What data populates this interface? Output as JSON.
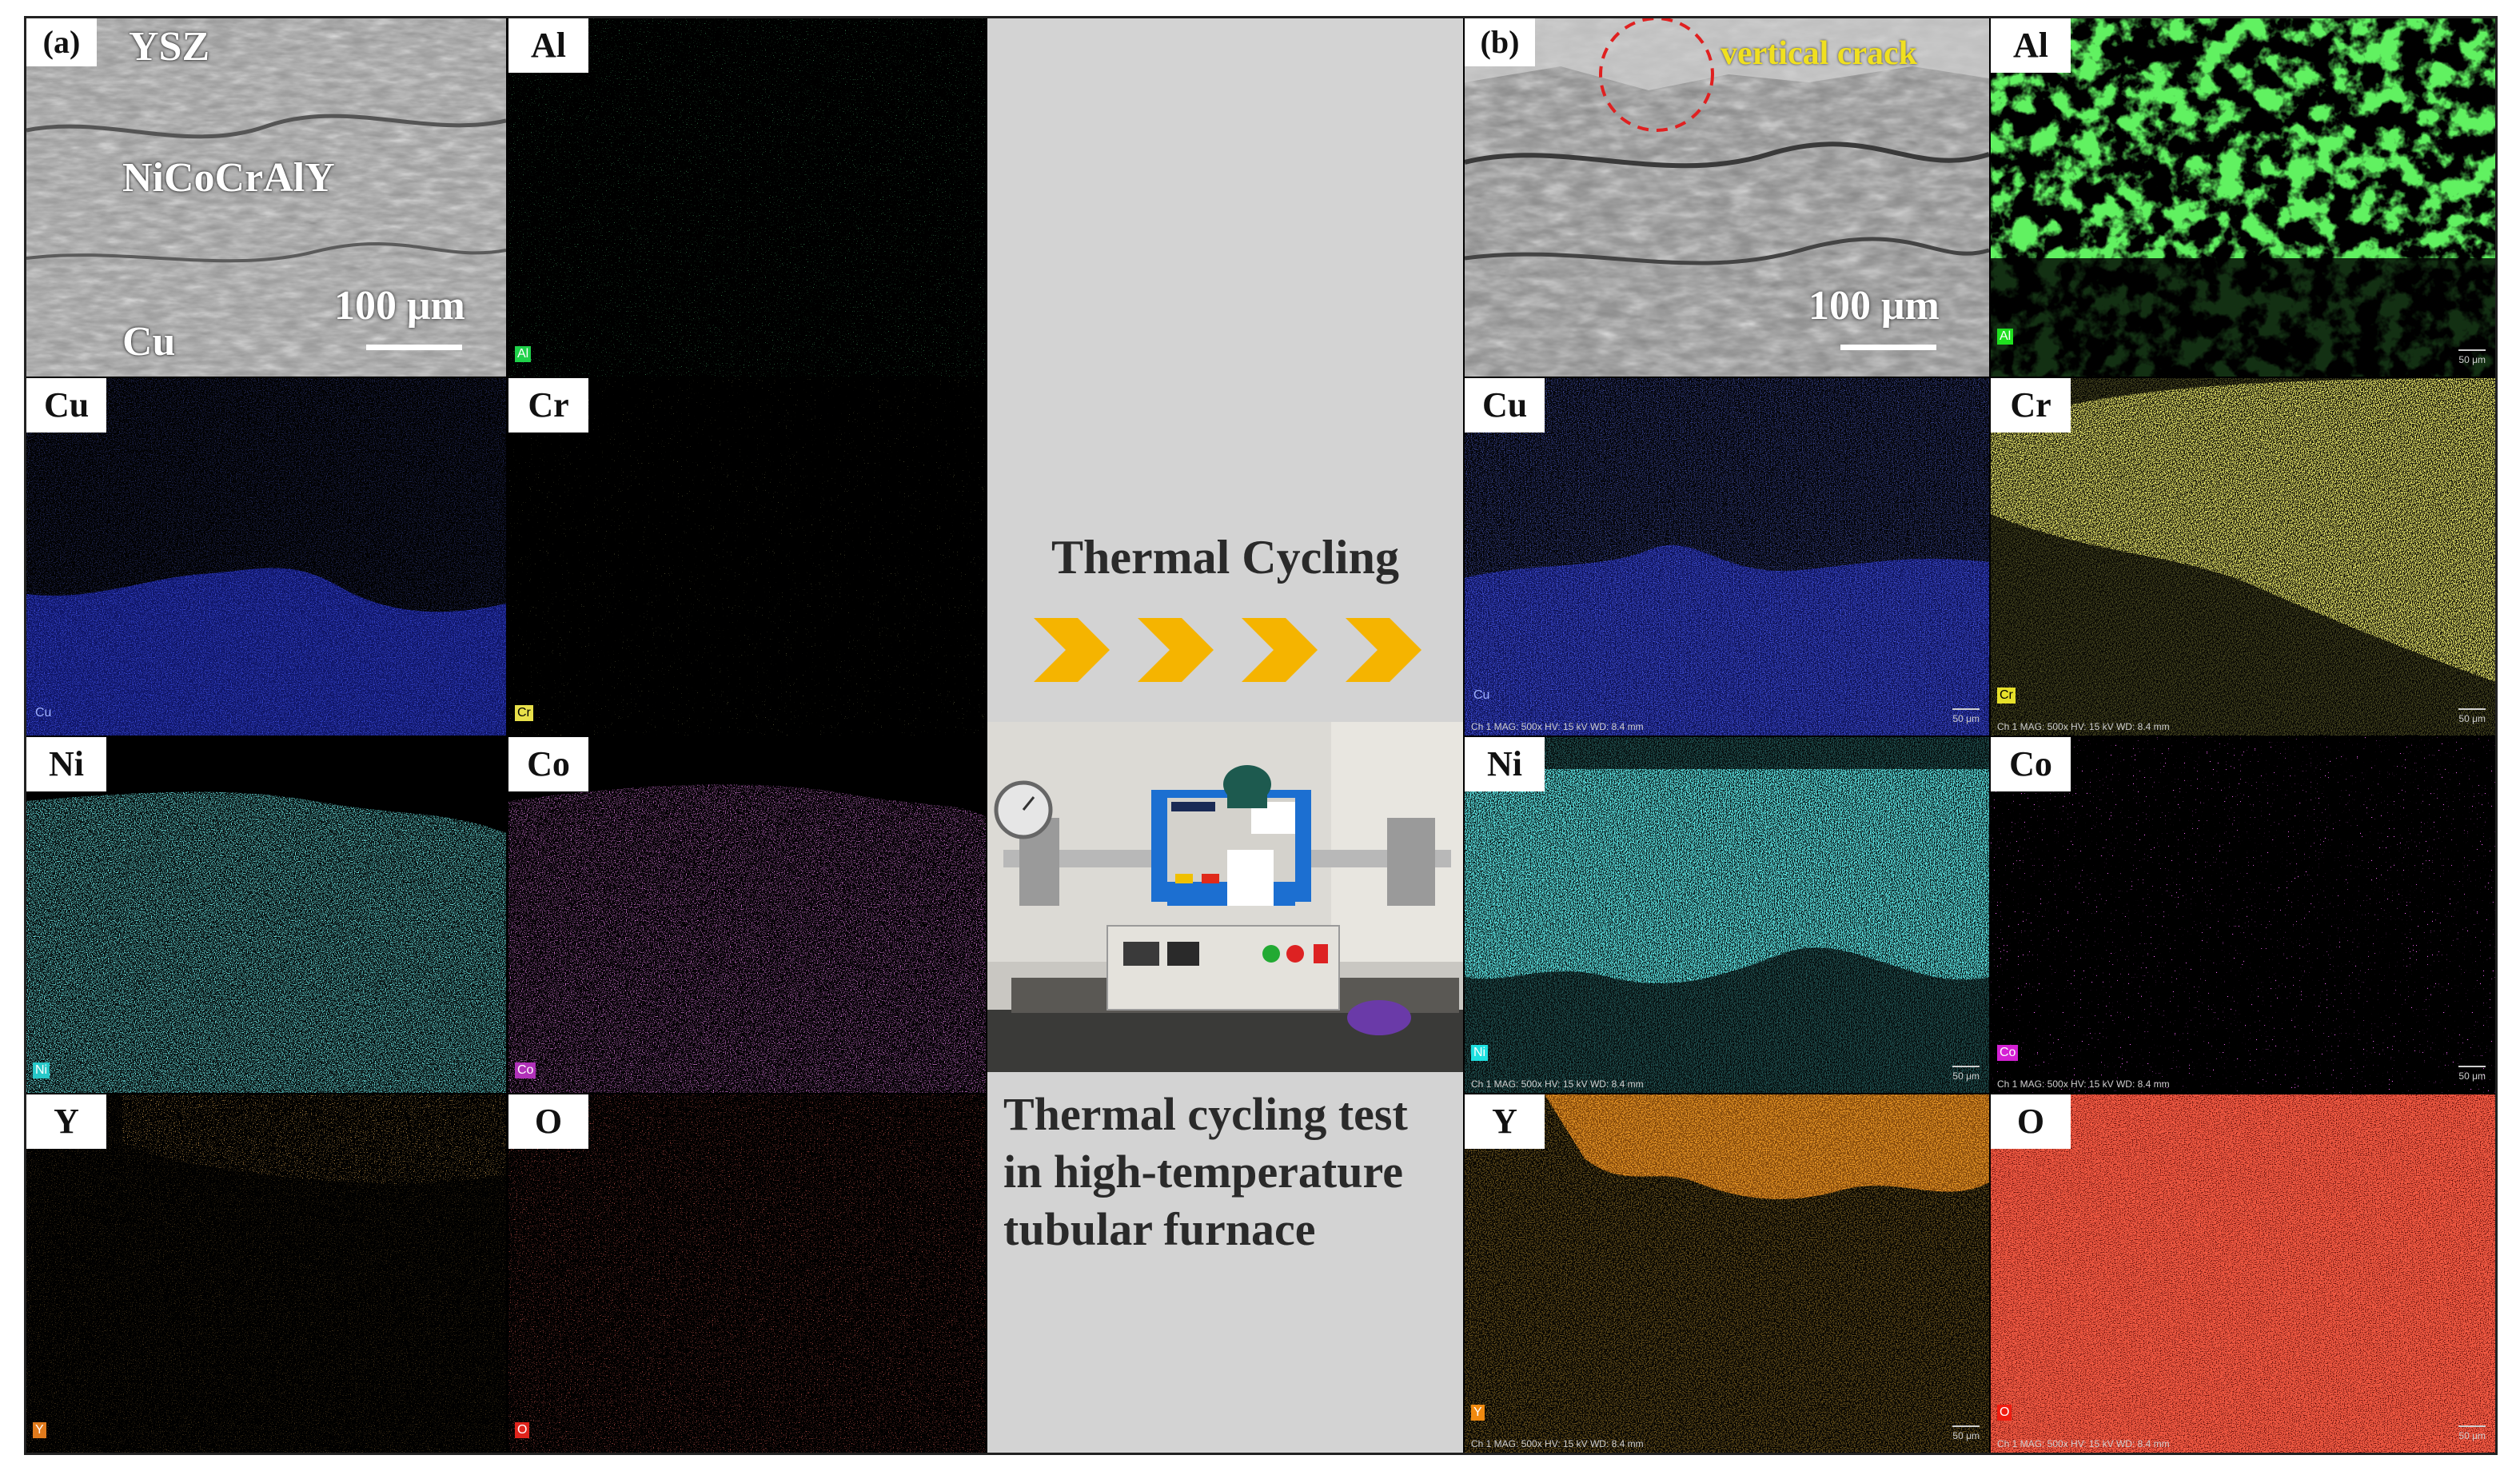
{
  "left_panel": {
    "tag": "(a)",
    "sem_layers": [
      "YSZ",
      "NiCoCrAlY",
      "Cu"
    ],
    "scale": "100 μm",
    "maps": [
      {
        "element": "Al",
        "color": "#1fd14a"
      },
      {
        "element": "Cu",
        "color": "#1f2ee6"
      },
      {
        "element": "Cr",
        "color": "#e8e04a"
      },
      {
        "element": "Ni",
        "color": "#26c8c8"
      },
      {
        "element": "Co",
        "color": "#b030b8"
      },
      {
        "element": "Y",
        "color": "#e07a1c"
      },
      {
        "element": "O",
        "color": "#e0241c"
      }
    ]
  },
  "center": {
    "title": "Thermal Cycling",
    "caption": "Thermal cycling test in high-temperature tubular furnace",
    "chevron_color": "#f5b400"
  },
  "right_panel": {
    "tag": "(b)",
    "annotation": "vertical crack",
    "scale": "100 μm",
    "meta": "Ch 1  MAG: 500x  HV: 15 kV  WD: 8.4 mm",
    "scale_small": "50 μm",
    "maps": [
      {
        "element": "Al",
        "color": "#1fe01f"
      },
      {
        "element": "Cu",
        "color": "#1f2ee6"
      },
      {
        "element": "Cr",
        "color": "#e6e02a"
      },
      {
        "element": "Ni",
        "color": "#1ee0e0"
      },
      {
        "element": "Co",
        "color": "#d420d4"
      },
      {
        "element": "Y",
        "color": "#f08a10"
      },
      {
        "element": "O",
        "color": "#f01c10"
      }
    ]
  }
}
